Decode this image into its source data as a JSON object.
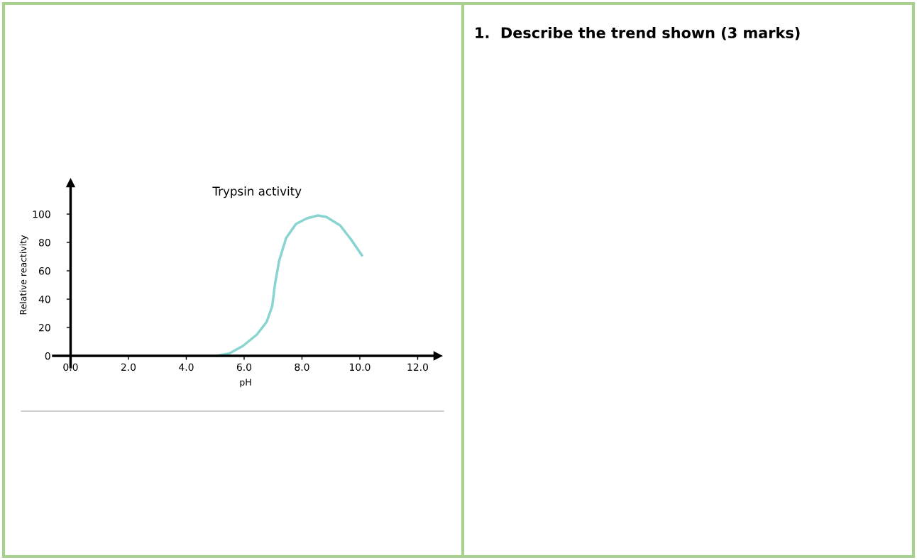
{
  "chart_data": {
    "type": "line",
    "title": "Trypsin activity",
    "xlabel": "pH",
    "ylabel": "Relative reactivity",
    "annotations": [
      "1.  Describe the trend shown (3 marks)"
    ],
    "xlim": [
      -0.6,
      12.7
    ],
    "ylim": [
      -8,
      122
    ],
    "xticks": [
      {
        "value": 0,
        "label": "0.0"
      },
      {
        "value": 2,
        "label": "2.0"
      },
      {
        "value": 4,
        "label": "4.0"
      },
      {
        "value": 6,
        "label": "6.0"
      },
      {
        "value": 8,
        "label": "8.0"
      },
      {
        "value": 10,
        "label": "10.0"
      },
      {
        "value": 12,
        "label": "12.0"
      }
    ],
    "yticks": [
      0,
      20,
      40,
      60,
      80,
      100
    ],
    "grid": false,
    "legend": false,
    "marker": "none",
    "line_style": "solid",
    "series": [
      {
        "color": "#88d4d0",
        "x": [
          5.05,
          5.48,
          5.96,
          6.44,
          6.78,
          6.97,
          7.07,
          7.21,
          7.45,
          7.79,
          8.17,
          8.55,
          8.84,
          9.32,
          9.7,
          10.07
        ],
        "values": [
          0,
          1.6,
          7,
          15,
          24,
          35,
          51,
          67,
          83,
          93,
          97,
          99,
          98,
          92,
          82,
          71
        ]
      }
    ]
  }
}
